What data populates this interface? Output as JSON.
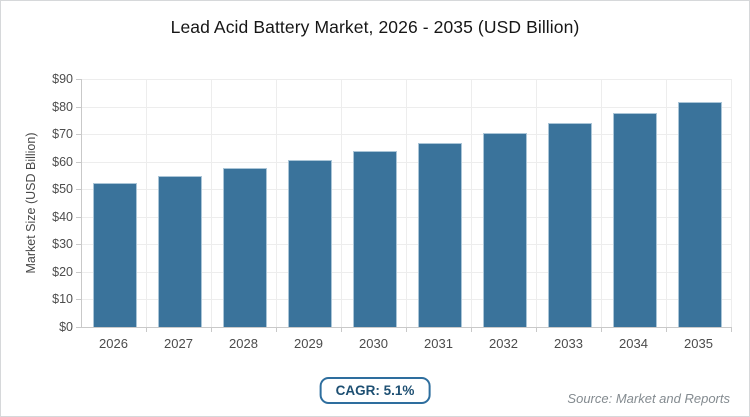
{
  "title": "Lead Acid Battery Market, 2026 - 2035 (USD Billion)",
  "y_axis_title": "Market Size (USD Billion)",
  "chart_data": {
    "type": "bar",
    "title": "Lead Acid Battery Market, 2026 - 2035 (USD Billion)",
    "categories": [
      "2026",
      "2027",
      "2028",
      "2029",
      "2030",
      "2031",
      "2032",
      "2033",
      "2034",
      "2035"
    ],
    "values": [
      52.2,
      54.9,
      57.7,
      60.6,
      63.7,
      66.9,
      70.4,
      73.9,
      77.7,
      81.7
    ],
    "xlabel": "",
    "ylabel": "Market Size (USD Billion)",
    "ylim": [
      0,
      90
    ],
    "ytick_step": 10,
    "ytick_labels": [
      "$0",
      "$10",
      "$20",
      "$30",
      "$40",
      "$50",
      "$60",
      "$70",
      "$80",
      "$90"
    ],
    "grid": "on",
    "legend": "none",
    "bar_color": "#3a739b",
    "bar_edge_color": "#aac5d7",
    "gridline_color": "#ededed",
    "axis_line_color": "#c9c9c9"
  },
  "footer": {
    "cagr_badge": "CAGR: 5.1%",
    "source": "Source: Market and Reports",
    "badge_border_color": "#2e6e9e",
    "badge_text_color": "#1d4f72"
  }
}
